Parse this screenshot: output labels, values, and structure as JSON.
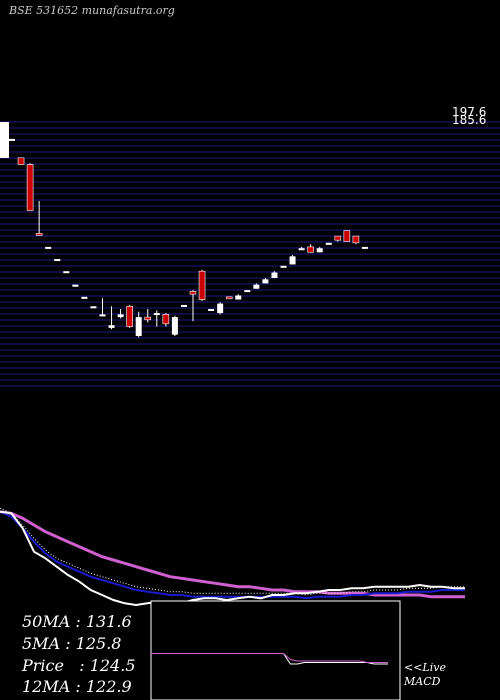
{
  "header": {
    "symbol": "BSE 531652",
    "site": "munafasutra.org"
  },
  "price_axis": {
    "top_label": "197.6",
    "second_label": "185.6"
  },
  "stats": {
    "ma50": "50MA : 131.6",
    "ma5": "5MA : 125.8",
    "price": "Price   : 124.5",
    "ma12": "12MA : 122.9"
  },
  "macd_label": {
    "line1": "<<Live",
    "line2": "MACD"
  },
  "colors": {
    "background": "#000000",
    "grid": "#1a1a80",
    "up_candle": "#ffffff",
    "down_candle": "#cc0000",
    "slow_ma": "#d060d0",
    "fast_ma": "#1a1acc",
    "price_line": "#ffffff"
  },
  "chart_data": [
    {
      "type": "candlestick",
      "ylim": [
        100,
        200
      ],
      "candles": [
        {
          "o": 193.0,
          "h": 193.0,
          "l": 193.0,
          "c": 193.0
        },
        {
          "o": 186.0,
          "h": 186.0,
          "l": 183.5,
          "c": 183.5
        },
        {
          "o": 183.5,
          "h": 184.0,
          "l": 166.5,
          "c": 166.5
        },
        {
          "o": 158.0,
          "h": 170.0,
          "l": 157.5,
          "c": 157.5
        },
        {
          "o": 153.0,
          "h": 153.0,
          "l": 153.0,
          "c": 153.0
        },
        {
          "o": 148.5,
          "h": 148.5,
          "l": 148.5,
          "c": 148.5
        },
        {
          "o": 144.0,
          "h": 144.0,
          "l": 144.0,
          "c": 144.0
        },
        {
          "o": 139.0,
          "h": 139.0,
          "l": 139.0,
          "c": 139.0
        },
        {
          "o": 134.5,
          "h": 134.5,
          "l": 134.5,
          "c": 134.5
        },
        {
          "o": 131.0,
          "h": 131.0,
          "l": 131.0,
          "c": 131.0
        },
        {
          "o": 128.0,
          "h": 134.0,
          "l": 127.5,
          "c": 128.0
        },
        {
          "o": 123.0,
          "h": 131.0,
          "l": 122.5,
          "c": 124.0
        },
        {
          "o": 127.0,
          "h": 130.0,
          "l": 126.5,
          "c": 128.0
        },
        {
          "o": 131.0,
          "h": 131.5,
          "l": 123.0,
          "c": 123.5
        },
        {
          "o": 120.0,
          "h": 129.0,
          "l": 119.5,
          "c": 127.0
        },
        {
          "o": 127.0,
          "h": 130.0,
          "l": 125.0,
          "c": 126.0
        },
        {
          "o": 128.0,
          "h": 129.5,
          "l": 123.5,
          "c": 128.5
        },
        {
          "o": 128.0,
          "h": 128.5,
          "l": 123.5,
          "c": 124.5
        },
        {
          "o": 120.5,
          "h": 127.5,
          "l": 120.0,
          "c": 127.0
        },
        {
          "o": 131.5,
          "h": 131.5,
          "l": 131.5,
          "c": 131.5
        },
        {
          "o": 136.5,
          "h": 137.0,
          "l": 125.5,
          "c": 135.5
        },
        {
          "o": 144.0,
          "h": 144.5,
          "l": 133.0,
          "c": 133.5
        },
        {
          "o": 130.0,
          "h": 130.0,
          "l": 130.0,
          "c": 130.0
        },
        {
          "o": 128.5,
          "h": 132.5,
          "l": 128.0,
          "c": 132.0
        },
        {
          "o": 134.5,
          "h": 134.5,
          "l": 134.0,
          "c": 134.0
        },
        {
          "o": 133.5,
          "h": 135.5,
          "l": 133.5,
          "c": 135.0
        },
        {
          "o": 137.0,
          "h": 137.0,
          "l": 137.0,
          "c": 137.0
        },
        {
          "o": 137.5,
          "h": 139.5,
          "l": 137.5,
          "c": 139.0
        },
        {
          "o": 139.5,
          "h": 141.5,
          "l": 139.5,
          "c": 141.0
        },
        {
          "o": 141.5,
          "h": 144.0,
          "l": 141.5,
          "c": 143.5
        },
        {
          "o": 146.0,
          "h": 146.0,
          "l": 146.0,
          "c": 146.0
        },
        {
          "o": 146.5,
          "h": 150.0,
          "l": 146.5,
          "c": 149.5
        },
        {
          "o": 152.5,
          "h": 153.0,
          "l": 152.0,
          "c": 152.5
        },
        {
          "o": 153.0,
          "h": 154.0,
          "l": 151.0,
          "c": 151.0
        },
        {
          "o": 151.0,
          "h": 153.0,
          "l": 151.0,
          "c": 152.5
        },
        {
          "o": 154.0,
          "h": 154.5,
          "l": 154.0,
          "c": 154.5
        },
        {
          "o": 157.0,
          "h": 157.0,
          "l": 155.0,
          "c": 155.5
        },
        {
          "o": 159.0,
          "h": 159.0,
          "l": 155.0,
          "c": 155.0
        },
        {
          "o": 157.0,
          "h": 157.0,
          "l": 154.0,
          "c": 154.5
        },
        {
          "o": 153.0,
          "h": 153.0,
          "l": 153.0,
          "c": 153.0
        }
      ]
    },
    {
      "type": "line",
      "series": [
        {
          "values": [
            186,
            185,
            182,
            178,
            174,
            171,
            168,
            165,
            162,
            159,
            157,
            155,
            153,
            151,
            149,
            147,
            146,
            145,
            144,
            143,
            142,
            141,
            141,
            140,
            139,
            139,
            138,
            138,
            138,
            137,
            137,
            137,
            137,
            136,
            136,
            136,
            136,
            136,
            135,
            135,
            135,
            135
          ]
        },
        {
          "values": [
            186,
            183,
            176,
            168,
            161,
            156,
            153,
            150,
            147,
            145,
            143,
            141,
            139,
            138,
            137,
            136,
            136,
            135,
            135,
            135,
            135,
            135,
            135,
            135,
            135,
            135,
            135,
            134,
            135,
            135,
            135,
            136,
            136,
            137,
            137,
            137,
            138,
            138,
            138,
            139,
            139,
            139
          ]
        },
        {
          "values": [
            186,
            185,
            176,
            162,
            158,
            153,
            148,
            144,
            139,
            136,
            133,
            131,
            130,
            131,
            132,
            132,
            131,
            133,
            134,
            134,
            133,
            134,
            135,
            134,
            136,
            136,
            137,
            137,
            138,
            139,
            139,
            140,
            140,
            141,
            141,
            141,
            141,
            142,
            141,
            141,
            140,
            140
          ]
        }
      ]
    },
    {
      "type": "line",
      "series": [
        {
          "values": [
            0.1,
            0.1,
            0.1,
            0.1,
            0.1,
            0.1,
            0.1,
            0.1,
            0.1,
            0.1,
            0.1,
            0.1,
            0.1,
            0.1,
            0.1,
            0.1,
            0.1,
            0.1,
            0.1,
            0.1,
            -0.6,
            -0.6,
            -0.5,
            -0.5,
            -0.5,
            -0.5,
            -0.5,
            -0.5,
            -0.5,
            -0.5,
            -0.5,
            -0.5,
            -0.6,
            -0.6,
            -0.6
          ]
        },
        {
          "values": [
            0.1,
            0.1,
            0.1,
            0.1,
            0.1,
            0.1,
            0.1,
            0.1,
            0.1,
            0.1,
            0.1,
            0.1,
            0.1,
            0.1,
            0.1,
            0.1,
            0.1,
            0.1,
            0.1,
            0.1,
            -0.3,
            -0.4,
            -0.4,
            -0.4,
            -0.4,
            -0.4,
            -0.4,
            -0.4,
            -0.4,
            -0.4,
            -0.4,
            -0.5,
            -0.5,
            -0.5,
            -0.5
          ]
        }
      ]
    }
  ]
}
